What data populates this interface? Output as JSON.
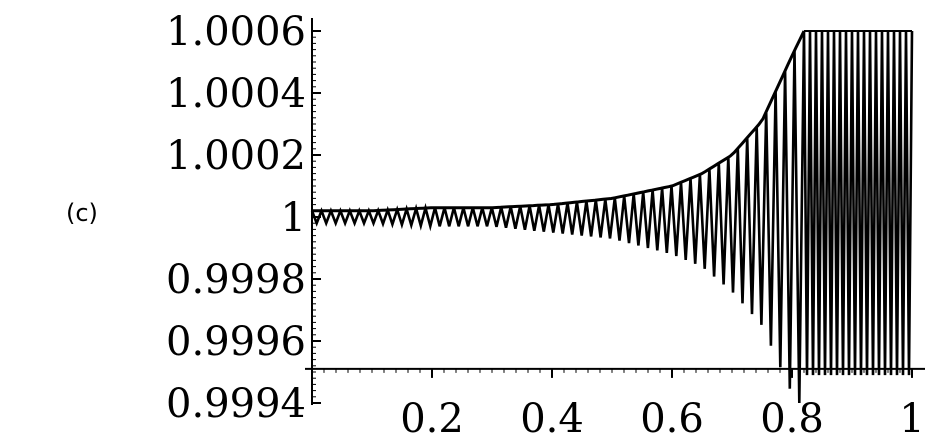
{
  "panel_label": "(c)",
  "chart_data": {
    "type": "line",
    "title": "",
    "xlabel": "",
    "ylabel": "",
    "xlim": [
      0,
      1
    ],
    "ylim": [
      0.9994,
      1.0006
    ],
    "x_ticks": [
      0.2,
      0.4,
      0.6,
      0.8,
      1
    ],
    "x_tick_labels": [
      "0.2",
      "0.4",
      "0.6",
      "0.8",
      "1"
    ],
    "y_ticks": [
      0.9994,
      0.9996,
      0.9998,
      1,
      1.0002,
      1.0004,
      1.0006
    ],
    "y_tick_labels": [
      "0.9994",
      "0.9996",
      "0.9998",
      "1",
      "1.0002",
      "1.0004",
      "1.0006"
    ],
    "x_axis_crosses_y": 0.99951,
    "series": [
      {
        "style": "oscillation",
        "description_of_data": "oscillating curve between upper envelope and lower envelope, clipped to plot range",
        "oscillation_count": 52,
        "upper_envelope": {
          "x": [
            0.0,
            0.1,
            0.2,
            0.3,
            0.4,
            0.5,
            0.6,
            0.65,
            0.7,
            0.75,
            0.8,
            0.82
          ],
          "y": [
            1.00002,
            1.00002,
            1.00003,
            1.00003,
            1.00004,
            1.00006,
            1.0001,
            1.00014,
            1.0002,
            1.00031,
            1.00052,
            1.0006
          ]
        },
        "lower_envelope": {
          "x": [
            0.0,
            0.1,
            0.2,
            0.3,
            0.4,
            0.5,
            0.6,
            0.65,
            0.7,
            0.75,
            0.8,
            0.82
          ],
          "y": [
            0.99998,
            0.99998,
            0.99997,
            0.99997,
            0.99995,
            0.99993,
            0.99988,
            0.99984,
            0.99976,
            0.99965,
            0.99943,
            0.9993
          ]
        },
        "saturated_region": {
          "x_start": 0.82,
          "x_end": 1.0,
          "y_top": 1.0006,
          "y_bottom": 0.99949
        }
      },
      {
        "style": "envelope",
        "x": [
          0.0,
          0.1,
          0.2,
          0.3,
          0.4,
          0.5,
          0.6,
          0.65,
          0.7,
          0.75,
          0.8,
          0.82
        ],
        "y": [
          1.00002,
          1.00002,
          1.00003,
          1.00003,
          1.00004,
          1.00006,
          1.0001,
          1.00014,
          1.0002,
          1.00031,
          1.00052,
          1.0006
        ]
      }
    ]
  }
}
